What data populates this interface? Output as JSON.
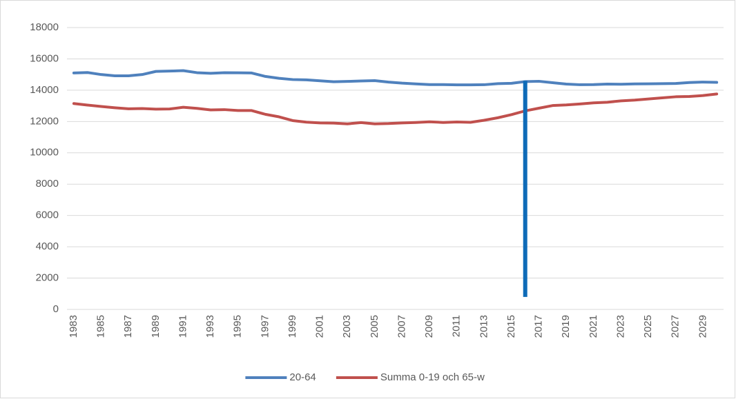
{
  "chart_data": {
    "type": "line",
    "x": [
      1983,
      1984,
      1985,
      1986,
      1987,
      1988,
      1989,
      1990,
      1991,
      1992,
      1993,
      1994,
      1995,
      1996,
      1997,
      1998,
      1999,
      2000,
      2001,
      2002,
      2003,
      2004,
      2005,
      2006,
      2007,
      2008,
      2009,
      2010,
      2011,
      2012,
      2013,
      2014,
      2015,
      2016,
      2017,
      2018,
      2019,
      2020,
      2021,
      2022,
      2023,
      2024,
      2025,
      2026,
      2027,
      2028,
      2029,
      2030
    ],
    "series": [
      {
        "name": "20-64",
        "color": "#4f81bd",
        "values": [
          15100,
          15130,
          15000,
          14920,
          14920,
          15000,
          15200,
          15220,
          15250,
          15120,
          15080,
          15120,
          15110,
          15100,
          14880,
          14760,
          14680,
          14660,
          14600,
          14540,
          14560,
          14590,
          14610,
          14520,
          14450,
          14400,
          14360,
          14360,
          14340,
          14340,
          14350,
          14420,
          14440,
          14550,
          14570,
          14480,
          14390,
          14350,
          14360,
          14390,
          14380,
          14400,
          14410,
          14420,
          14430,
          14490,
          14520,
          14500
        ]
      },
      {
        "name": "Summa 0-19 och 65-w",
        "color": "#c0504d",
        "values": [
          13150,
          13050,
          12960,
          12880,
          12810,
          12830,
          12790,
          12800,
          12910,
          12840,
          12740,
          12760,
          12700,
          12700,
          12460,
          12300,
          12060,
          11960,
          11910,
          11900,
          11850,
          11930,
          11850,
          11870,
          11910,
          11940,
          11980,
          11940,
          11970,
          11950,
          12080,
          12240,
          12440,
          12680,
          12850,
          13020,
          13060,
          13120,
          13190,
          13230,
          13320,
          13370,
          13440,
          13510,
          13580,
          13600,
          13660,
          13760
        ]
      }
    ],
    "xlim": [
      1982.5,
      2030.5
    ],
    "xticks": [
      1983,
      1985,
      1987,
      1989,
      1991,
      1993,
      1995,
      1997,
      1999,
      2001,
      2003,
      2005,
      2007,
      2009,
      2011,
      2013,
      2015,
      2017,
      2019,
      2021,
      2023,
      2025,
      2027,
      2029
    ],
    "ylim": [
      0,
      18000
    ],
    "yticks": [
      0,
      2000,
      4000,
      6000,
      8000,
      10000,
      12000,
      14000,
      16000,
      18000
    ],
    "grid": true,
    "legend": "bottom",
    "vertical_line": {
      "x": 2016,
      "ymin": 800,
      "ymax": 14600,
      "color": "#0e6bb8"
    }
  }
}
